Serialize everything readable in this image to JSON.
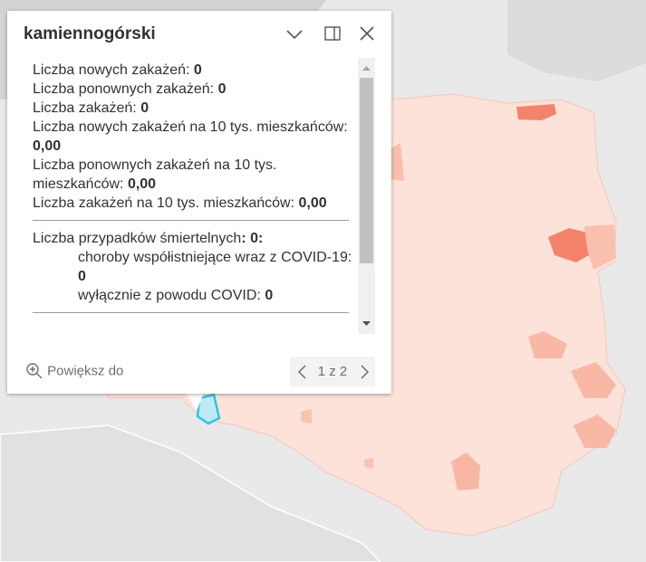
{
  "popup": {
    "title": "kamiennogórski",
    "fields": [
      {
        "label": "Liczba nowych zakażeń:",
        "value": "0"
      },
      {
        "label": "Liczba ponownych zakażeń:",
        "value": "0"
      },
      {
        "label": "Liczba zakażeń:",
        "value": "0"
      },
      {
        "label": "Liczba nowych zakażeń na 10 tys. mieszkańców:",
        "value": "0,00"
      },
      {
        "label": "Liczba ponownych zakażeń na 10 tys. mieszkańców:",
        "value": "0,00"
      },
      {
        "label": "Liczba zakażeń na 10 tys. mieszkańców:",
        "value": "0,00"
      }
    ],
    "deaths": {
      "label": "Liczba przypadków śmiertelnych",
      "value": ": 0:",
      "items": [
        {
          "label": "choroby współistniejące wraz z COVID-19:",
          "value": "0"
        },
        {
          "label": "wyłącznie z powodu COVID:",
          "value": "0"
        }
      ]
    },
    "zoom": "Powiększ do",
    "pager": "1 z 2"
  }
}
